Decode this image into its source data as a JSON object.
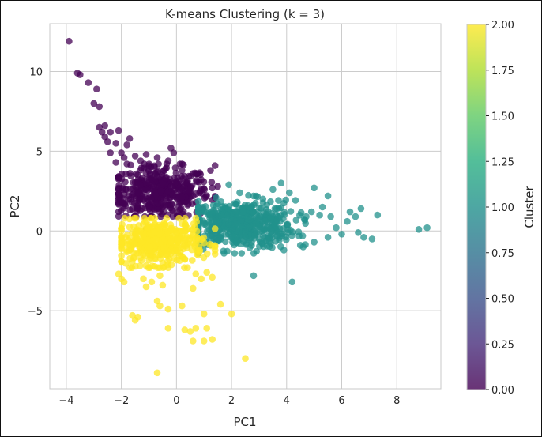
{
  "chart_data": {
    "type": "scatter",
    "title": "K-means Clustering (k = 3)",
    "xlabel": "PC1",
    "ylabel": "PC2",
    "xlim": [
      -4.6,
      9.6
    ],
    "ylim": [
      -9.9,
      13.0
    ],
    "xticks": [
      -4,
      -2,
      0,
      2,
      4,
      6,
      8
    ],
    "yticks": [
      -5,
      0,
      5,
      10
    ],
    "xtick_labels": [
      "−4",
      "−2",
      "0",
      "2",
      "4",
      "6",
      "8"
    ],
    "ytick_labels": [
      "−5",
      "0",
      "5",
      "10"
    ],
    "grid": true,
    "colormap": "viridis",
    "colorbar": {
      "label": "Cluster",
      "range": [
        0.0,
        2.0
      ],
      "ticks": [
        0.0,
        0.25,
        0.5,
        0.75,
        1.0,
        1.25,
        1.5,
        1.75,
        2.0
      ],
      "tick_labels": [
        "0.00",
        "0.25",
        "0.50",
        "0.75",
        "1.00",
        "1.25",
        "1.50",
        "1.75",
        "2.00"
      ]
    },
    "series": [
      {
        "cluster": 0,
        "color": "#440154",
        "points": [
          [
            -3.9,
            11.9
          ],
          [
            -3.6,
            9.9
          ],
          [
            -3.5,
            9.8
          ],
          [
            -3.2,
            9.3
          ],
          [
            -2.9,
            8.9
          ],
          [
            -3.0,
            8.0
          ],
          [
            -2.8,
            7.8
          ],
          [
            -2.8,
            6.5
          ],
          [
            -2.6,
            6.6
          ],
          [
            -2.7,
            6.2
          ],
          [
            -2.6,
            5.9
          ],
          [
            -2.4,
            6.2
          ],
          [
            -2.5,
            5.6
          ],
          [
            -2.2,
            5.5
          ],
          [
            -2.1,
            6.3
          ],
          [
            -2.0,
            4.9
          ],
          [
            -1.8,
            5.4
          ],
          [
            -1.7,
            5.8
          ],
          [
            -2.4,
            4.9
          ],
          [
            -2.2,
            4.3
          ],
          [
            -1.9,
            4.6
          ],
          [
            -1.8,
            4.2
          ],
          [
            -1.5,
            4.7
          ],
          [
            -1.3,
            4.4
          ],
          [
            -1.1,
            4.8
          ],
          [
            -0.7,
            4.6
          ],
          [
            -0.2,
            5.2
          ],
          [
            -0.1,
            4.9
          ],
          [
            -0.3,
            4.4
          ],
          [
            -0.8,
            4.0
          ],
          [
            -0.4,
            3.9
          ],
          [
            0.2,
            3.8
          ],
          [
            0.6,
            3.6
          ],
          [
            1.4,
            4.1
          ],
          [
            1.3,
            2.7
          ],
          [
            1.5,
            2.8
          ],
          [
            -1.1,
            0.1
          ]
        ],
        "blob": {
          "cx": -0.6,
          "cy": 2.4,
          "sx": 0.9,
          "sy": 0.8,
          "n": 420,
          "xmin": -2.1,
          "xmax": 1.4,
          "ymin": 0.9,
          "ymax": 4.2
        }
      },
      {
        "cluster": 1,
        "color": "#21918c",
        "points": [
          [
            1.9,
            2.9
          ],
          [
            2.3,
            2.4
          ],
          [
            2.8,
            2.2
          ],
          [
            3.5,
            2.6
          ],
          [
            3.8,
            3.0
          ],
          [
            4.1,
            2.4
          ],
          [
            5.0,
            2.7
          ],
          [
            5.5,
            2.2
          ],
          [
            6.3,
            1.2
          ],
          [
            6.5,
            0.9
          ],
          [
            6.7,
            1.4
          ],
          [
            7.3,
            1.0
          ],
          [
            6.2,
            0.6
          ],
          [
            6.6,
            -0.1
          ],
          [
            6.8,
            -0.4
          ],
          [
            7.1,
            -0.5
          ],
          [
            5.5,
            -0.4
          ],
          [
            5.0,
            -0.7
          ],
          [
            4.5,
            -0.9
          ],
          [
            4.9,
            1.2
          ],
          [
            5.6,
            0.9
          ],
          [
            5.3,
            1.5
          ],
          [
            8.8,
            0.1
          ],
          [
            9.1,
            0.2
          ],
          [
            2.8,
            -2.8
          ],
          [
            4.2,
            -3.2
          ],
          [
            3.9,
            -1.2
          ],
          [
            4.6,
            -1.0
          ],
          [
            5.8,
            0.2
          ],
          [
            6.0,
            -0.2
          ]
        ],
        "blob": {
          "cx": 2.3,
          "cy": 0.4,
          "sx": 1.0,
          "sy": 0.75,
          "n": 520,
          "xmin": 0.8,
          "xmax": 5.2,
          "ymin": -1.4,
          "ymax": 2.3
        }
      },
      {
        "cluster": 2,
        "color": "#fde725",
        "points": [
          [
            -2.1,
            -2.7
          ],
          [
            -2.0,
            -3.0
          ],
          [
            -1.9,
            -3.2
          ],
          [
            -1.2,
            -3.0
          ],
          [
            -0.9,
            -3.2
          ],
          [
            -0.6,
            -2.8
          ],
          [
            -0.5,
            -3.4
          ],
          [
            -1.1,
            -3.5
          ],
          [
            0.4,
            -2.3
          ],
          [
            0.7,
            -2.7
          ],
          [
            0.9,
            -3.0
          ],
          [
            1.1,
            -2.6
          ],
          [
            1.3,
            -2.9
          ],
          [
            0.6,
            -3.6
          ],
          [
            -0.7,
            -4.4
          ],
          [
            -0.6,
            -4.7
          ],
          [
            -0.3,
            -4.9
          ],
          [
            -1.6,
            -5.3
          ],
          [
            -1.5,
            -5.6
          ],
          [
            -1.4,
            -5.4
          ],
          [
            -0.3,
            -6.1
          ],
          [
            0.3,
            -6.2
          ],
          [
            0.5,
            -6.3
          ],
          [
            0.7,
            -6.1
          ],
          [
            1.1,
            -6.1
          ],
          [
            0.6,
            -6.9
          ],
          [
            1.0,
            -6.9
          ],
          [
            1.3,
            -6.8
          ],
          [
            1.6,
            -4.6
          ],
          [
            2.0,
            -5.2
          ],
          [
            1.0,
            -5.2
          ],
          [
            2.5,
            -8.0
          ],
          [
            -0.7,
            -8.9
          ],
          [
            0.2,
            -4.7
          ]
        ],
        "blob": {
          "cx": -0.6,
          "cy": -0.7,
          "sx": 0.8,
          "sy": 0.7,
          "n": 420,
          "xmin": -2.0,
          "xmax": 1.4,
          "ymin": -2.3,
          "ymax": 0.8
        }
      }
    ]
  }
}
